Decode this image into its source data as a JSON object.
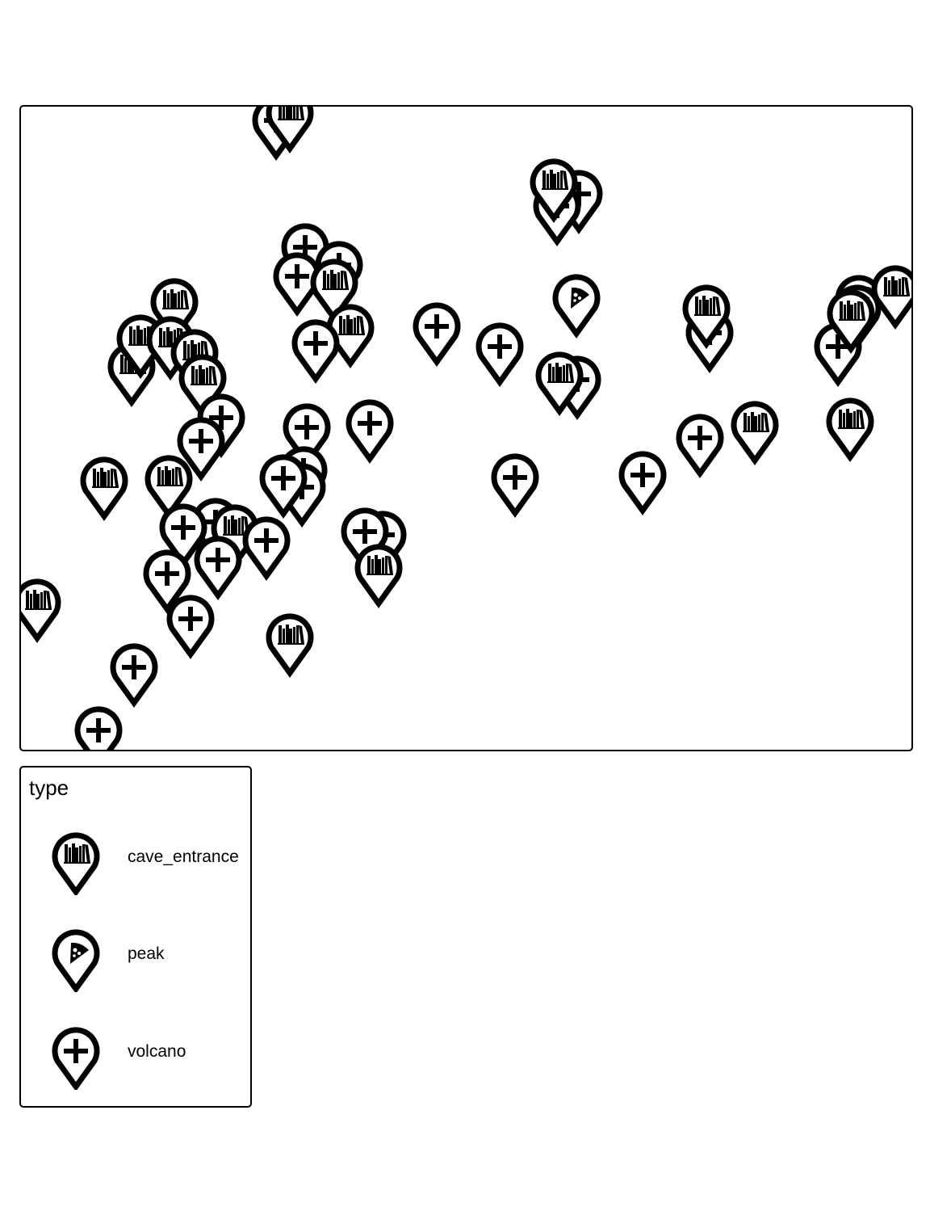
{
  "legend": {
    "title": "type",
    "items": [
      {
        "key": "cave_entrance",
        "label": "cave_entrance",
        "icon": "books-icon"
      },
      {
        "key": "peak",
        "label": "peak",
        "icon": "pizza-icon"
      },
      {
        "key": "volcano",
        "label": "volcano",
        "icon": "plus-icon"
      }
    ]
  },
  "colors": {
    "marker_stroke": "#000000",
    "marker_fill": "#ffffff",
    "frame": "#000000"
  },
  "markers": [
    {
      "type": "volcano",
      "lon": 316,
      "lat": 17
    },
    {
      "type": "cave_entrance",
      "lon": 333,
      "lat": 8
    },
    {
      "type": "volcano",
      "lon": 691,
      "lat": 108
    },
    {
      "type": "volcano",
      "lon": 664,
      "lat": 123
    },
    {
      "type": "cave_entrance",
      "lon": 660,
      "lat": 94
    },
    {
      "type": "volcano",
      "lon": 352,
      "lat": 174
    },
    {
      "type": "volcano",
      "lon": 394,
      "lat": 196
    },
    {
      "type": "volcano",
      "lon": 342,
      "lat": 210
    },
    {
      "type": "cave_entrance",
      "lon": 388,
      "lat": 218
    },
    {
      "type": "cave_entrance",
      "lon": 190,
      "lat": 242
    },
    {
      "type": "cave_entrance",
      "lon": 408,
      "lat": 274
    },
    {
      "type": "volcano",
      "lon": 365,
      "lat": 293
    },
    {
      "type": "volcano",
      "lon": 515,
      "lat": 272
    },
    {
      "type": "volcano",
      "lon": 593,
      "lat": 297
    },
    {
      "type": "peak",
      "lon": 688,
      "lat": 237
    },
    {
      "type": "volcano",
      "lon": 689,
      "lat": 338
    },
    {
      "type": "cave_entrance",
      "lon": 667,
      "lat": 333
    },
    {
      "type": "volcano",
      "lon": 853,
      "lat": 280
    },
    {
      "type": "cave_entrance",
      "lon": 849,
      "lat": 250
    },
    {
      "type": "volcano",
      "lon": 1012,
      "lat": 297
    },
    {
      "type": "cave_entrance",
      "lon": 1038,
      "lat": 238
    },
    {
      "type": "cave_entrance",
      "lon": 1036,
      "lat": 250
    },
    {
      "type": "cave_entrance",
      "lon": 1083,
      "lat": 226
    },
    {
      "type": "cave_entrance",
      "lon": 1028,
      "lat": 256
    },
    {
      "type": "cave_entrance",
      "lon": 137,
      "lat": 322
    },
    {
      "type": "cave_entrance",
      "lon": 148,
      "lat": 287
    },
    {
      "type": "cave_entrance",
      "lon": 185,
      "lat": 289
    },
    {
      "type": "cave_entrance",
      "lon": 215,
      "lat": 305
    },
    {
      "type": "cave_entrance",
      "lon": 225,
      "lat": 336
    },
    {
      "type": "volcano",
      "lon": 248,
      "lat": 385
    },
    {
      "type": "volcano",
      "lon": 223,
      "lat": 414
    },
    {
      "type": "volcano",
      "lon": 354,
      "lat": 397
    },
    {
      "type": "volcano",
      "lon": 432,
      "lat": 392
    },
    {
      "type": "volcano",
      "lon": 350,
      "lat": 450
    },
    {
      "type": "volcano",
      "lon": 348,
      "lat": 471
    },
    {
      "type": "volcano",
      "lon": 325,
      "lat": 460
    },
    {
      "type": "cave_entrance",
      "lon": 103,
      "lat": 463
    },
    {
      "type": "cave_entrance",
      "lon": 183,
      "lat": 461
    },
    {
      "type": "volcano",
      "lon": 612,
      "lat": 459
    },
    {
      "type": "volcano",
      "lon": 770,
      "lat": 456
    },
    {
      "type": "volcano",
      "lon": 841,
      "lat": 410
    },
    {
      "type": "cave_entrance",
      "lon": 909,
      "lat": 394
    },
    {
      "type": "cave_entrance",
      "lon": 1027,
      "lat": 390
    },
    {
      "type": "volcano",
      "lon": 241,
      "lat": 514
    },
    {
      "type": "volcano",
      "lon": 201,
      "lat": 521
    },
    {
      "type": "cave_entrance",
      "lon": 265,
      "lat": 522
    },
    {
      "type": "volcano",
      "lon": 304,
      "lat": 537
    },
    {
      "type": "volcano",
      "lon": 244,
      "lat": 561
    },
    {
      "type": "volcano",
      "lon": 181,
      "lat": 578
    },
    {
      "type": "volcano",
      "lon": 210,
      "lat": 634
    },
    {
      "type": "volcano",
      "lon": 448,
      "lat": 530
    },
    {
      "type": "volcano",
      "lon": 426,
      "lat": 526
    },
    {
      "type": "cave_entrance",
      "lon": 443,
      "lat": 571
    },
    {
      "type": "cave_entrance",
      "lon": 20,
      "lat": 614
    },
    {
      "type": "cave_entrance",
      "lon": 333,
      "lat": 657
    },
    {
      "type": "volcano",
      "lon": 140,
      "lat": 694
    },
    {
      "type": "volcano",
      "lon": 96,
      "lat": 772
    }
  ]
}
